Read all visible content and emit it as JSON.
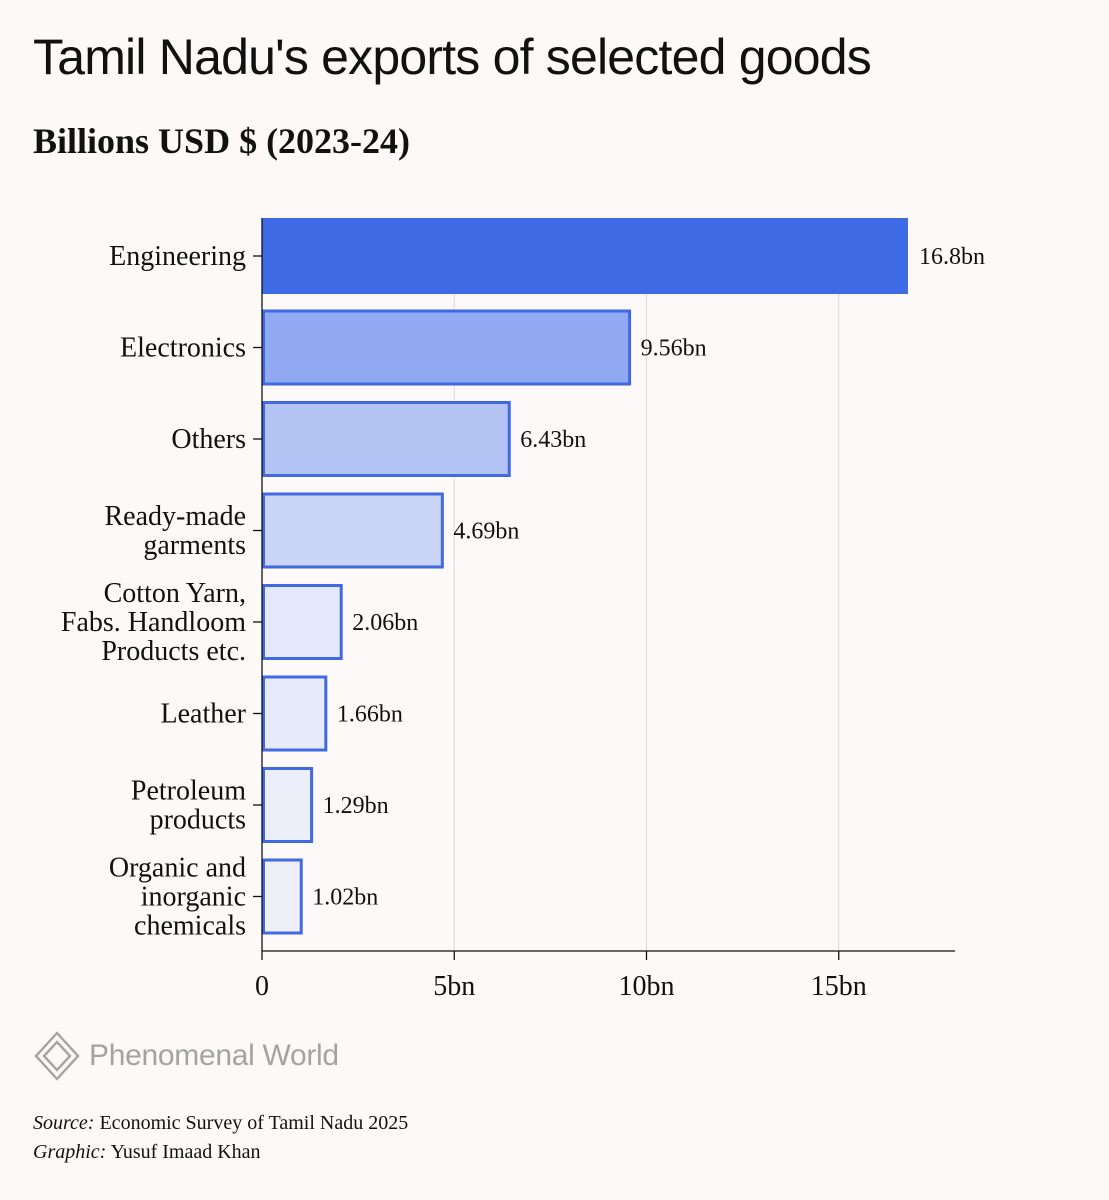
{
  "title": "Tamil Nadu's exports of selected goods",
  "subtitle": "Billions USD $ (2023-24)",
  "colors": {
    "background": "#fdf9f9",
    "bar_stroke": "#4169e1",
    "bar_fills": [
      "#3e6ae6",
      "#91a9f3",
      "#b4c5f5",
      "#c9d4f7",
      "#e4e8fa",
      "#e6eaf9",
      "#eceef9",
      "#efeff8"
    ],
    "brand_text": "#a3a3a3"
  },
  "chart_data": {
    "type": "bar",
    "orientation": "horizontal",
    "title": "Tamil Nadu's exports of selected goods",
    "subtitle": "Billions USD $ (2023-24)",
    "categories": [
      [
        "Engineering"
      ],
      [
        "Electronics"
      ],
      [
        "Others"
      ],
      [
        "Ready-made",
        "garments"
      ],
      [
        "Cotton Yarn,",
        "Fabs. Handloom",
        "Products etc."
      ],
      [
        "Leather"
      ],
      [
        "Petroleum",
        "products"
      ],
      [
        "Organic and",
        "inorganic",
        "chemicals"
      ]
    ],
    "values": [
      16.8,
      9.56,
      6.43,
      4.69,
      2.06,
      1.66,
      1.29,
      1.02
    ],
    "value_labels": [
      "16.8bn",
      "9.56bn",
      "6.43bn",
      "4.69bn",
      "2.06bn",
      "1.66bn",
      "1.29bn",
      "1.02bn"
    ],
    "x_ticks": [
      0,
      5,
      10,
      15
    ],
    "x_tick_labels": [
      "0",
      "5bn",
      "10bn",
      "15bn"
    ],
    "xlim": [
      0,
      18
    ],
    "xlabel": "",
    "ylabel": "",
    "gridlines": "vertical"
  },
  "brand": {
    "name": "Phenomenal World",
    "logo_icon": "diamond-logo-icon"
  },
  "credits": {
    "source_label": "Source:",
    "source_text": "Economic Survey of Tamil Nadu 2025",
    "graphic_label": "Graphic:",
    "graphic_text": "Yusuf Imaad Khan"
  }
}
